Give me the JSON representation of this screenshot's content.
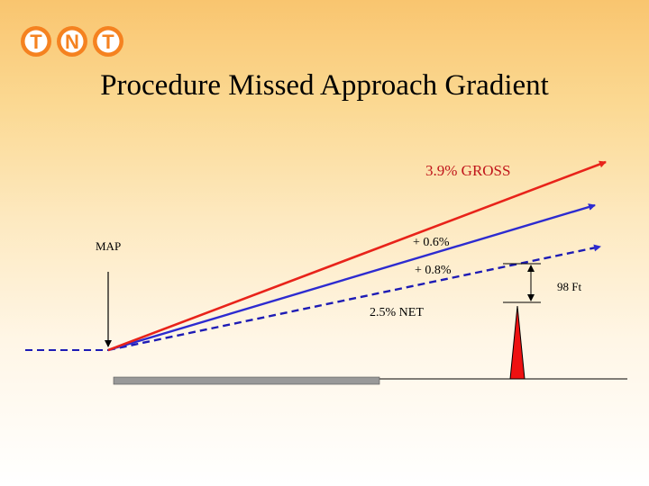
{
  "logo": {
    "letters": [
      "T",
      "N",
      "T"
    ],
    "color": "#f58220"
  },
  "title": "Procedure Missed Approach Gradient",
  "labels": {
    "gross": "3.9%  GROSS",
    "map": "MAP",
    "plus06": "+ 0.6%",
    "plus08": "+ 0.8%",
    "net": "2.5% NET",
    "clearance": "98 Ft"
  },
  "colors": {
    "gross_line": "#e8231a",
    "gradient_line": "#2d2bd0",
    "net_line": "#1d1bb5",
    "obstacle": "#ee1111",
    "runway": "#999999",
    "gross_text": "#c0151b"
  }
}
